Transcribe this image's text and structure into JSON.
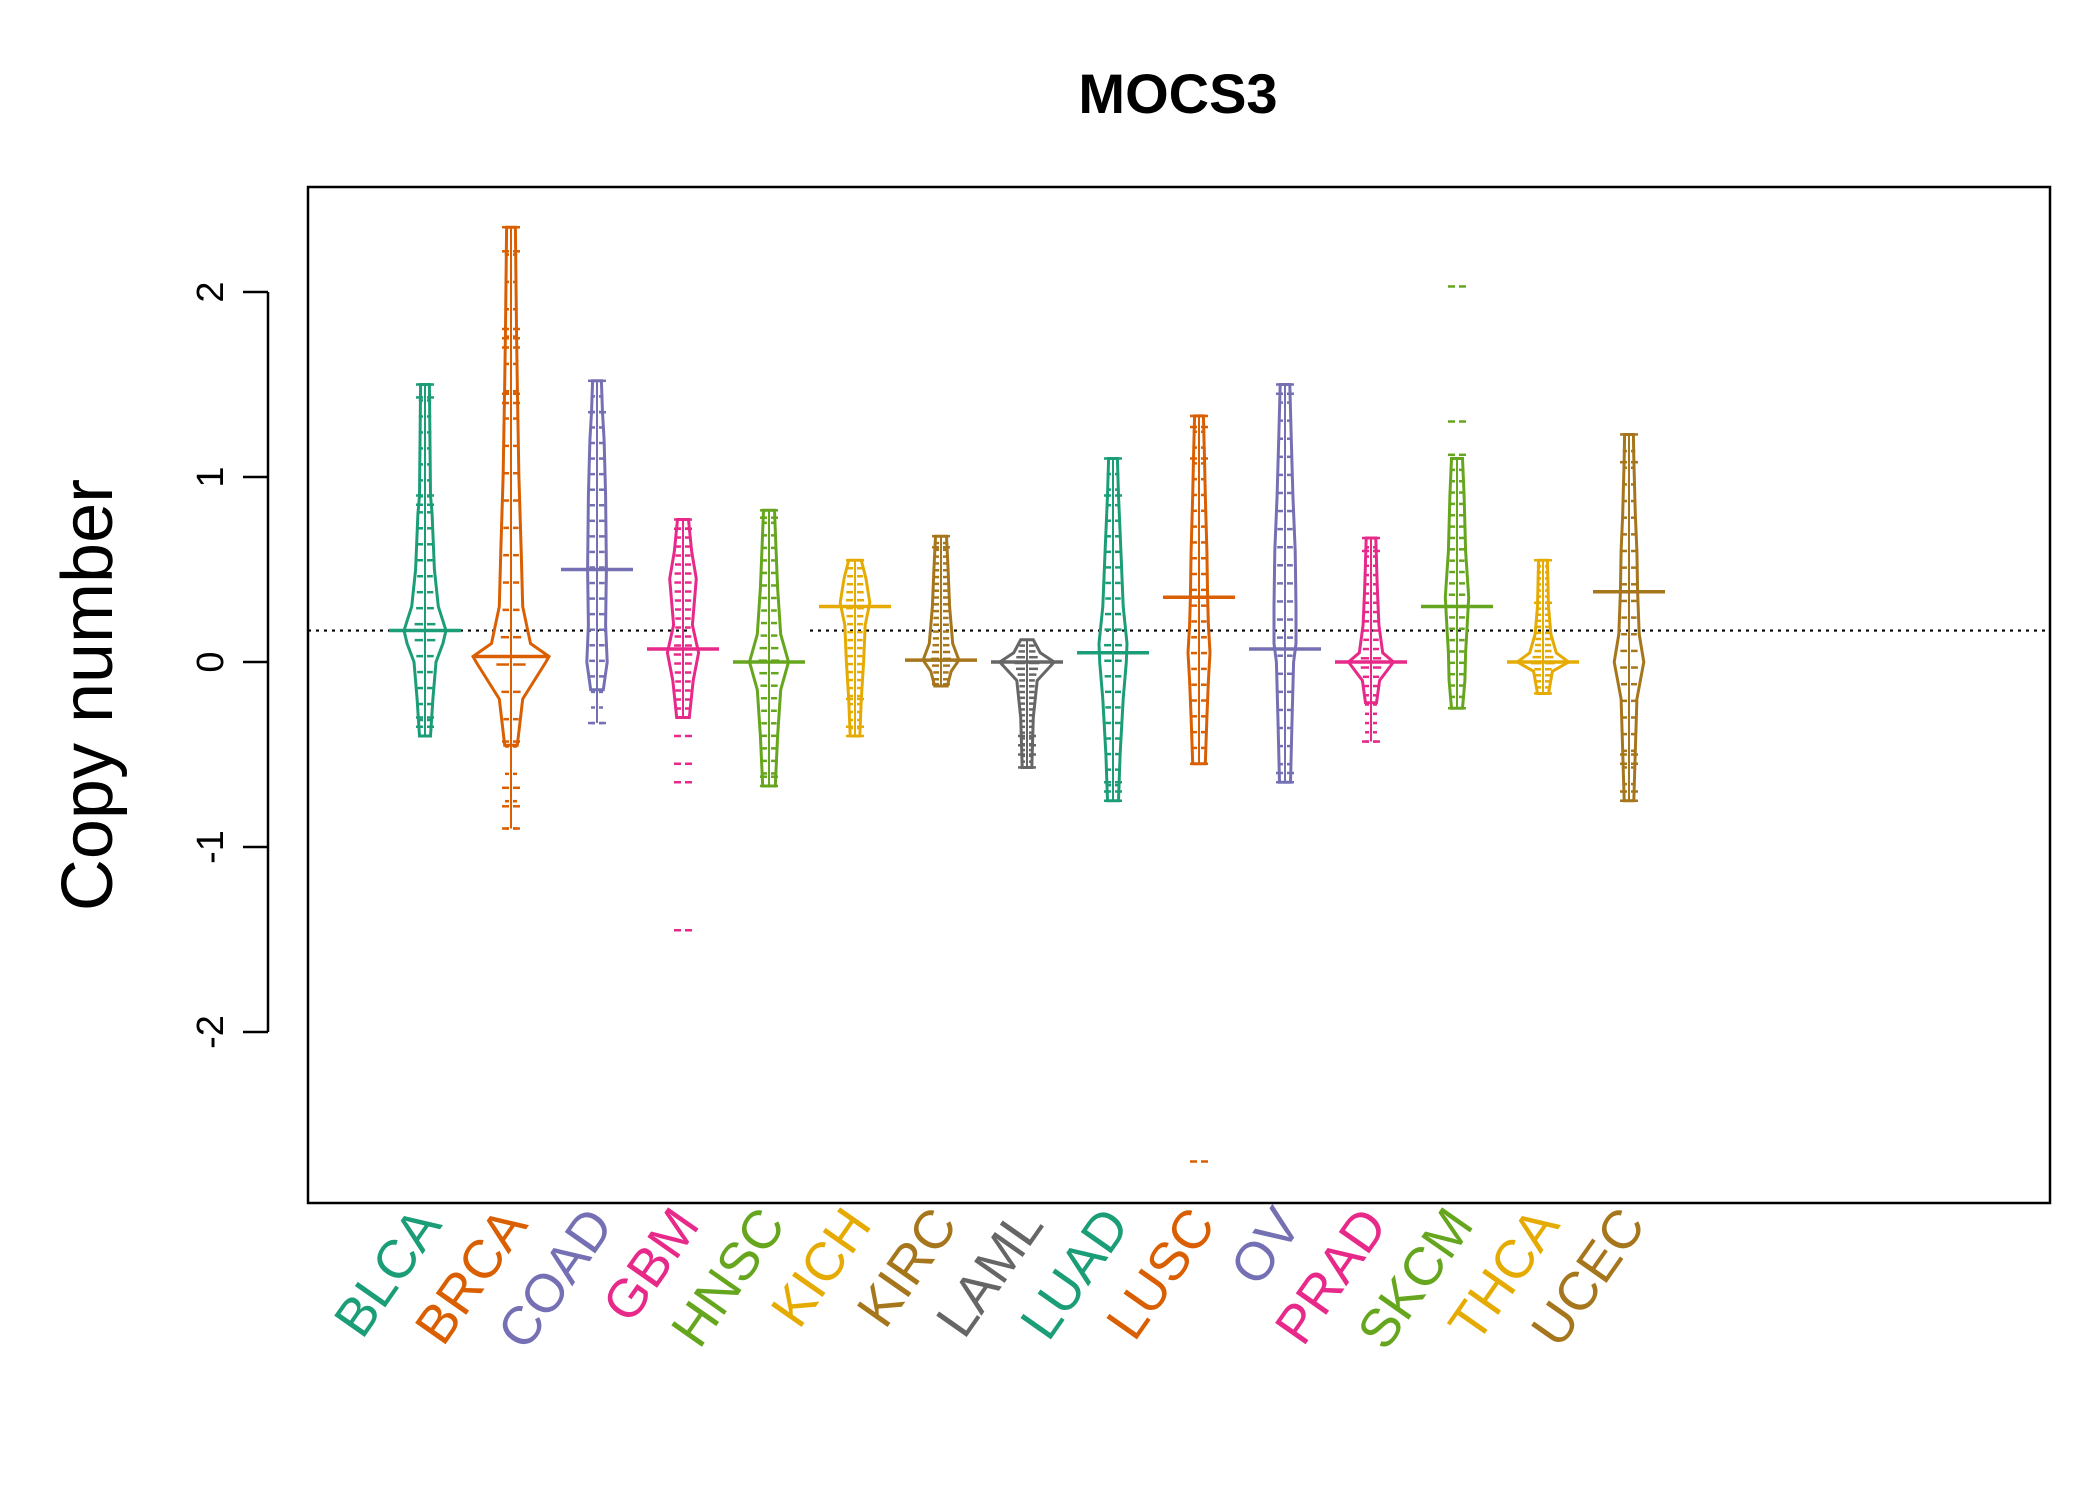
{
  "chart_data": {
    "type": "beanplot",
    "title": "MOCS3",
    "ylabel": "Copy number",
    "xlabel": "",
    "ylim": [
      -2.9,
      2.55
    ],
    "yticks": [
      -2,
      -1,
      0,
      1,
      2
    ],
    "ytick_labels": [
      "-2",
      "-1",
      "0",
      "1",
      "2"
    ],
    "reference_line": 0.17,
    "grid": false,
    "groups": [
      {
        "name": "BLCA",
        "color": "#1B9E77",
        "median": 0.17,
        "min": -0.4,
        "max": 1.5,
        "density": [
          [
            -0.4,
            2
          ],
          [
            -0.2,
            5
          ],
          [
            0,
            9
          ],
          [
            0.1,
            18
          ],
          [
            0.17,
            22
          ],
          [
            0.3,
            12
          ],
          [
            0.5,
            7
          ],
          [
            0.8,
            4
          ],
          [
            0.9,
            2
          ],
          [
            1.5,
            0.5
          ]
        ],
        "outliers": [
          1.43,
          1.5,
          -0.35,
          -0.3,
          0.85,
          0.9
        ]
      },
      {
        "name": "BRCA",
        "color": "#D95F02",
        "median": 0.03,
        "min": -0.9,
        "max": 2.35,
        "density": [
          [
            -0.45,
            3
          ],
          [
            -0.2,
            10
          ],
          [
            0,
            40
          ],
          [
            0.03,
            44
          ],
          [
            0.1,
            20
          ],
          [
            0.3,
            10
          ],
          [
            0.6,
            8
          ],
          [
            1,
            5
          ],
          [
            1.5,
            3
          ],
          [
            1.8,
            2
          ],
          [
            2.35,
            0.5
          ]
        ],
        "outliers": [
          2.35,
          2.22,
          -0.68,
          -0.78,
          -0.9,
          1.8,
          1.75,
          1.7,
          1.45,
          1.4,
          -0.43
        ]
      },
      {
        "name": "COAD",
        "color": "#7570B3",
        "median": 0.5,
        "min": -0.33,
        "max": 1.52,
        "density": [
          [
            -0.15,
            3
          ],
          [
            0,
            8
          ],
          [
            0.2,
            6
          ],
          [
            0.5,
            7
          ],
          [
            0.9,
            6
          ],
          [
            1.2,
            4
          ],
          [
            1.35,
            2
          ],
          [
            1.52,
            0.5
          ]
        ],
        "outliers": [
          1.52,
          -0.33,
          1.35
        ]
      },
      {
        "name": "GBM",
        "color": "#E7298A",
        "median": 0.07,
        "min": -1.45,
        "max": 0.77,
        "density": [
          [
            -0.3,
            3
          ],
          [
            -0.1,
            8
          ],
          [
            0.05,
            15
          ],
          [
            0.2,
            7
          ],
          [
            0.45,
            12
          ],
          [
            0.6,
            6
          ],
          [
            0.77,
            2
          ]
        ],
        "outliers": [
          -0.4,
          -0.55,
          -0.65,
          -1.45,
          0.77,
          0.72
        ]
      },
      {
        "name": "HNSC",
        "color": "#66A61E",
        "median": 0.0,
        "min": -0.67,
        "max": 0.82,
        "density": [
          [
            -0.67,
            3
          ],
          [
            -0.4,
            6
          ],
          [
            -0.15,
            10
          ],
          [
            0,
            20
          ],
          [
            0.15,
            10
          ],
          [
            0.4,
            6
          ],
          [
            0.6,
            4
          ],
          [
            0.82,
            2
          ]
        ],
        "outliers": [
          -0.67,
          -0.62,
          0.82,
          0.78
        ]
      },
      {
        "name": "KICH",
        "color": "#E6AB02",
        "median": 0.3,
        "min": -0.4,
        "max": 0.55,
        "density": [
          [
            -0.4,
            1
          ],
          [
            -0.2,
            3
          ],
          [
            0,
            6
          ],
          [
            0.2,
            8
          ],
          [
            0.32,
            14
          ],
          [
            0.45,
            9
          ],
          [
            0.55,
            3
          ]
        ],
        "outliers": [
          -0.35,
          -0.4,
          0.55,
          -0.2
        ]
      },
      {
        "name": "KIRC",
        "color": "#A6761D",
        "median": 0.01,
        "min": -0.13,
        "max": 0.68,
        "density": [
          [
            -0.13,
            3
          ],
          [
            -0.05,
            8
          ],
          [
            0.01,
            18
          ],
          [
            0.1,
            10
          ],
          [
            0.3,
            6
          ],
          [
            0.5,
            4
          ],
          [
            0.68,
            2
          ]
        ],
        "outliers": [
          0.68,
          0.62,
          -0.12
        ]
      },
      {
        "name": "LAML",
        "color": "#666666",
        "median": 0.0,
        "min": -0.57,
        "max": 0.12,
        "density": [
          [
            -0.57,
            1
          ],
          [
            -0.3,
            3
          ],
          [
            -0.1,
            8
          ],
          [
            0,
            30
          ],
          [
            0.05,
            12
          ],
          [
            0.12,
            3
          ]
        ],
        "outliers": [
          -0.57,
          -0.5,
          -0.4,
          -0.45
        ]
      },
      {
        "name": "LUAD",
        "color": "#1B9E77",
        "median": 0.05,
        "min": -0.75,
        "max": 1.1,
        "density": [
          [
            -0.75,
            2
          ],
          [
            -0.5,
            4
          ],
          [
            -0.2,
            8
          ],
          [
            0,
            12
          ],
          [
            0.1,
            13
          ],
          [
            0.3,
            8
          ],
          [
            0.6,
            5
          ],
          [
            0.9,
            2
          ],
          [
            1.1,
            0.5
          ]
        ],
        "outliers": [
          1.1,
          -0.75,
          -0.7,
          -0.65,
          0.9
        ]
      },
      {
        "name": "LUSC",
        "color": "#D95F02",
        "median": 0.35,
        "min": -2.7,
        "max": 1.33,
        "density": [
          [
            -0.55,
            3
          ],
          [
            -0.3,
            5
          ],
          [
            -0.1,
            7
          ],
          [
            0.05,
            9
          ],
          [
            0.2,
            7
          ],
          [
            0.35,
            6
          ],
          [
            0.6,
            5
          ],
          [
            0.9,
            3
          ],
          [
            1.1,
            2
          ],
          [
            1.33,
            0.5
          ]
        ],
        "outliers": [
          -2.7,
          1.33,
          1.27,
          1.1,
          -0.55
        ]
      },
      {
        "name": "OV",
        "color": "#7570B3",
        "median": 0.07,
        "min": -0.65,
        "max": 1.5,
        "density": [
          [
            -0.65,
            2
          ],
          [
            -0.3,
            4
          ],
          [
            0,
            6
          ],
          [
            0.1,
            9
          ],
          [
            0.3,
            9
          ],
          [
            0.6,
            8
          ],
          [
            0.9,
            5
          ],
          [
            1.2,
            3
          ],
          [
            1.5,
            1
          ]
        ],
        "outliers": [
          1.5,
          1.45,
          -0.65,
          -0.6
        ]
      },
      {
        "name": "PRAD",
        "color": "#E7298A",
        "median": 0.0,
        "min": -0.43,
        "max": 0.67,
        "density": [
          [
            -0.22,
            2
          ],
          [
            -0.1,
            6
          ],
          [
            0,
            24
          ],
          [
            0.05,
            10
          ],
          [
            0.2,
            5
          ],
          [
            0.4,
            3
          ],
          [
            0.67,
            1
          ]
        ],
        "outliers": [
          -0.43,
          0.67,
          0.6
        ]
      },
      {
        "name": "SKCM",
        "color": "#66A61E",
        "median": 0.3,
        "min": -0.25,
        "max": 2.03,
        "density": [
          [
            -0.25,
            2
          ],
          [
            -0.1,
            5
          ],
          [
            0.05,
            6
          ],
          [
            0.2,
            8
          ],
          [
            0.35,
            10
          ],
          [
            0.6,
            6
          ],
          [
            0.9,
            4
          ],
          [
            1.1,
            2
          ]
        ],
        "outliers": [
          2.03,
          1.3,
          1.12,
          -0.25
        ]
      },
      {
        "name": "THCA",
        "color": "#E6AB02",
        "median": 0.0,
        "min": -0.17,
        "max": 0.55,
        "density": [
          [
            -0.17,
            2
          ],
          [
            -0.05,
            7
          ],
          [
            0,
            28
          ],
          [
            0.05,
            12
          ],
          [
            0.15,
            5
          ],
          [
            0.3,
            2
          ],
          [
            0.55,
            0.5
          ]
        ],
        "outliers": [
          0.55,
          0.32,
          -0.17
        ]
      },
      {
        "name": "UCEC",
        "color": "#A6761D",
        "median": 0.38,
        "min": -0.75,
        "max": 1.23,
        "density": [
          [
            -0.75,
            1
          ],
          [
            -0.2,
            5
          ],
          [
            0,
            14
          ],
          [
            0.15,
            8
          ],
          [
            0.38,
            6
          ],
          [
            0.6,
            5
          ],
          [
            0.8,
            3
          ],
          [
            1.1,
            1
          ],
          [
            1.23,
            0.5
          ]
        ],
        "outliers": [
          1.23,
          1.08,
          -0.5,
          -0.55,
          -0.7,
          -0.75
        ]
      }
    ]
  }
}
